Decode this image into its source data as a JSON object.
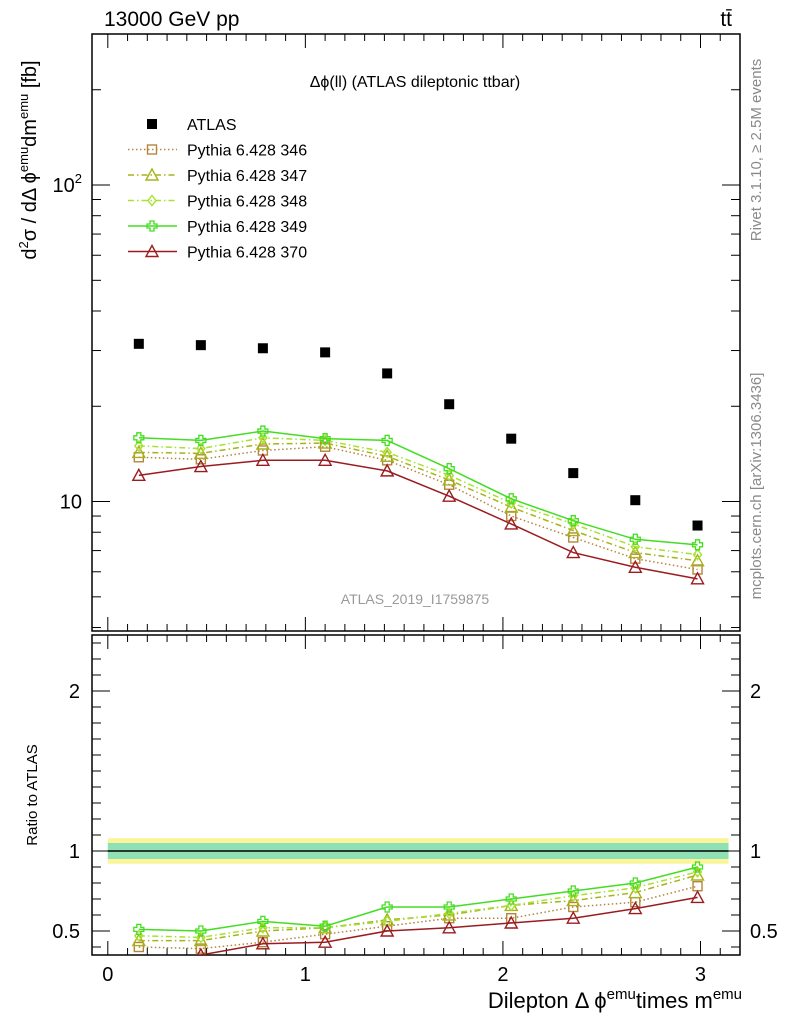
{
  "header": {
    "energy_label": "13000 GeV pp",
    "process_label": "tt̄"
  },
  "side_labels": {
    "rivet": "Rivet 3.1.10, ≥ 2.5M events",
    "mcplots": "mcplots.cern.ch [arXiv:1306.3436]"
  },
  "chart_data": [
    {
      "type": "scatter",
      "panel": "main",
      "title": "Δϕ(ll) (ATLAS dileptonic ttbar)",
      "watermark": "ATLAS_2019_I1759875",
      "ylabel": "d²σ / dΔ ϕemu dm emu [fb]",
      "yscale": "log",
      "ylim": [
        3.9,
        300
      ],
      "xlim": [
        -0.08,
        3.2
      ],
      "ytick_labels": [
        "10",
        "10²"
      ],
      "legend_position": "top-left",
      "x": [
        0.157,
        0.471,
        0.785,
        1.1,
        1.414,
        1.728,
        2.042,
        2.356,
        2.67,
        2.985
      ],
      "series": [
        {
          "name": "ATLAS",
          "marker": "square-filled",
          "color": "#000000",
          "line": "none",
          "values": [
            31.5,
            31.2,
            30.5,
            29.6,
            25.4,
            20.3,
            15.8,
            12.3,
            10.1,
            8.4
          ]
        },
        {
          "name": "Pythia 6.428 346",
          "marker": "square-open",
          "color": "#b5853d",
          "line": "dotted",
          "values": [
            13.8,
            13.6,
            14.5,
            14.9,
            13.5,
            11.3,
            9.0,
            7.7,
            6.6,
            6.1
          ]
        },
        {
          "name": "Pythia 6.428 347",
          "marker": "triangle-open",
          "color": "#a7b31b",
          "line": "dash-dot",
          "values": [
            14.3,
            14.2,
            15.2,
            15.3,
            13.9,
            11.7,
            9.6,
            8.1,
            6.9,
            6.5
          ]
        },
        {
          "name": "Pythia 6.428 348",
          "marker": "diamond-open",
          "color": "#a6e22e",
          "line": "dash-dot",
          "values": [
            15.0,
            14.7,
            15.9,
            15.6,
            14.3,
            12.1,
            9.9,
            8.5,
            7.2,
            6.8
          ]
        },
        {
          "name": "Pythia 6.428 349",
          "marker": "cross-open",
          "color": "#44dd22",
          "line": "solid",
          "values": [
            15.9,
            15.6,
            16.7,
            15.8,
            15.6,
            12.7,
            10.2,
            8.7,
            7.6,
            7.3
          ]
        },
        {
          "name": "Pythia 6.428 370",
          "marker": "triangle-open",
          "color": "#9b1c20",
          "line": "solid",
          "values": [
            12.1,
            12.9,
            13.5,
            13.5,
            12.5,
            10.4,
            8.5,
            6.9,
            6.2,
            5.7
          ]
        }
      ]
    },
    {
      "type": "line",
      "panel": "ratio",
      "xlabel": "Dilepton Δ ϕemu times m emu",
      "ylabel": "Ratio to ATLAS",
      "ylim": [
        0.35,
        2.35
      ],
      "xlim": [
        -0.08,
        3.2
      ],
      "xticks": [
        0,
        1,
        2,
        3
      ],
      "yticks": [
        0.5,
        1,
        2
      ],
      "ratio_band": {
        "center": 1.0,
        "inner": [
          0.95,
          1.05
        ],
        "outer": [
          0.92,
          1.08
        ]
      },
      "x": [
        0.157,
        0.471,
        0.785,
        1.1,
        1.414,
        1.728,
        2.042,
        2.356,
        2.67,
        2.985
      ],
      "series": [
        {
          "name": "Pythia 6.428 346",
          "color": "#b5853d",
          "values": [
            0.4,
            0.39,
            0.43,
            0.48,
            0.53,
            0.58,
            0.58,
            0.65,
            0.68,
            0.78
          ]
        },
        {
          "name": "Pythia 6.428 347",
          "color": "#a7b31b",
          "values": [
            0.44,
            0.44,
            0.5,
            0.52,
            0.57,
            0.6,
            0.66,
            0.69,
            0.74,
            0.85
          ]
        },
        {
          "name": "Pythia 6.428 348",
          "color": "#a6e22e",
          "values": [
            0.47,
            0.46,
            0.52,
            0.52,
            0.56,
            0.61,
            0.66,
            0.72,
            0.77,
            0.87
          ]
        },
        {
          "name": "Pythia 6.428 349",
          "color": "#44dd22",
          "values": [
            0.51,
            0.5,
            0.56,
            0.53,
            0.65,
            0.65,
            0.7,
            0.75,
            0.8,
            0.9
          ]
        },
        {
          "name": "Pythia 6.428 370",
          "color": "#9b1c20",
          "values": [
            0.3,
            0.35,
            0.42,
            0.43,
            0.5,
            0.52,
            0.55,
            0.58,
            0.64,
            0.71
          ]
        }
      ]
    }
  ]
}
